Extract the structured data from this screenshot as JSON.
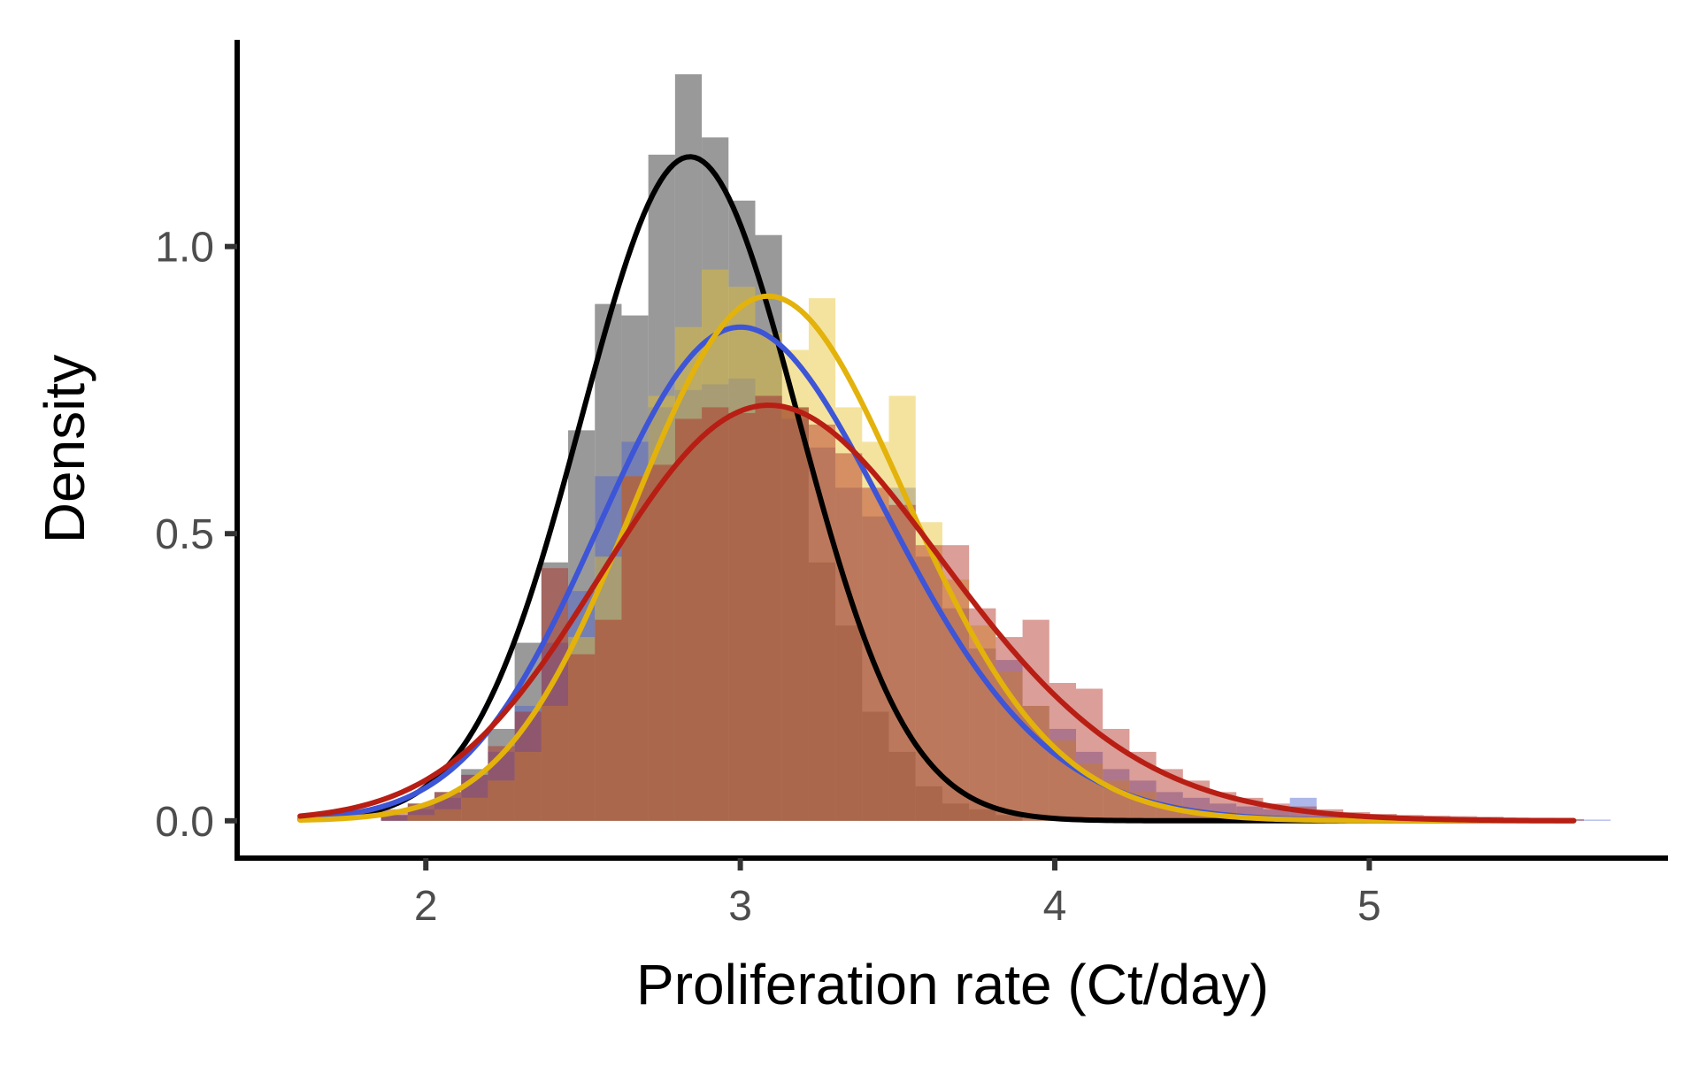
{
  "chart_data": {
    "type": "histogram",
    "title": "",
    "xlabel": "Proliferation rate (Ct/day)",
    "ylabel": "Density",
    "xlim": [
      1.4,
      5.95
    ],
    "ylim": [
      -0.065,
      1.36
    ],
    "x_ticks": [
      2,
      3,
      4,
      5
    ],
    "x_tick_labels": [
      "2",
      "3",
      "4",
      "5"
    ],
    "y_ticks": [
      0.0,
      0.5,
      1.0
    ],
    "y_tick_labels": [
      "0.0",
      "0.5",
      "1.0"
    ],
    "grid": false,
    "legend": "none",
    "bin_width": 0.085,
    "series": [
      {
        "color": "#7f7f7f",
        "fill_opacity": 0.8,
        "curve_color": "#000000",
        "bins": [
          {
            "x": 1.9,
            "y": 0.01
          },
          {
            "x": 1.985,
            "y": 0.03
          },
          {
            "x": 2.07,
            "y": 0.05
          },
          {
            "x": 2.155,
            "y": 0.09
          },
          {
            "x": 2.24,
            "y": 0.16
          },
          {
            "x": 2.325,
            "y": 0.31
          },
          {
            "x": 2.41,
            "y": 0.45
          },
          {
            "x": 2.495,
            "y": 0.68
          },
          {
            "x": 2.58,
            "y": 0.9
          },
          {
            "x": 2.665,
            "y": 0.88
          },
          {
            "x": 2.75,
            "y": 1.16
          },
          {
            "x": 2.835,
            "y": 1.3
          },
          {
            "x": 2.92,
            "y": 1.19
          },
          {
            "x": 3.005,
            "y": 1.08
          },
          {
            "x": 3.09,
            "y": 1.02
          },
          {
            "x": 3.175,
            "y": 0.72
          },
          {
            "x": 3.26,
            "y": 0.45
          },
          {
            "x": 3.345,
            "y": 0.34
          },
          {
            "x": 3.43,
            "y": 0.19
          },
          {
            "x": 3.515,
            "y": 0.12
          },
          {
            "x": 3.6,
            "y": 0.06
          },
          {
            "x": 3.685,
            "y": 0.03
          },
          {
            "x": 3.77,
            "y": 0.02
          },
          {
            "x": 3.855,
            "y": 0.01
          }
        ],
        "curve": {
          "mean": 2.84,
          "sd": 0.345
        }
      },
      {
        "color": "#4a5fd1",
        "fill_opacity": 0.45,
        "curve_color": "#3d55d6",
        "bins": [
          {
            "x": 1.9,
            "y": 0.01
          },
          {
            "x": 1.985,
            "y": 0.02
          },
          {
            "x": 2.07,
            "y": 0.04
          },
          {
            "x": 2.155,
            "y": 0.08
          },
          {
            "x": 2.24,
            "y": 0.12
          },
          {
            "x": 2.325,
            "y": 0.2
          },
          {
            "x": 2.41,
            "y": 0.31
          },
          {
            "x": 2.495,
            "y": 0.4
          },
          {
            "x": 2.58,
            "y": 0.6
          },
          {
            "x": 2.665,
            "y": 0.66
          },
          {
            "x": 2.75,
            "y": 0.72
          },
          {
            "x": 2.835,
            "y": 0.75
          },
          {
            "x": 2.92,
            "y": 0.76
          },
          {
            "x": 3.005,
            "y": 0.77
          },
          {
            "x": 3.09,
            "y": 0.74
          },
          {
            "x": 3.175,
            "y": 0.7
          },
          {
            "x": 3.26,
            "y": 0.65
          },
          {
            "x": 3.345,
            "y": 0.58
          },
          {
            "x": 3.43,
            "y": 0.53
          },
          {
            "x": 3.515,
            "y": 0.58
          },
          {
            "x": 3.6,
            "y": 0.46
          },
          {
            "x": 3.685,
            "y": 0.37
          },
          {
            "x": 3.77,
            "y": 0.3
          },
          {
            "x": 3.855,
            "y": 0.28
          },
          {
            "x": 3.94,
            "y": 0.2
          },
          {
            "x": 4.025,
            "y": 0.16
          },
          {
            "x": 4.11,
            "y": 0.12
          },
          {
            "x": 4.195,
            "y": 0.09
          },
          {
            "x": 4.28,
            "y": 0.07
          },
          {
            "x": 4.365,
            "y": 0.05
          },
          {
            "x": 4.45,
            "y": 0.04
          },
          {
            "x": 4.535,
            "y": 0.03
          },
          {
            "x": 4.62,
            "y": 0.025
          },
          {
            "x": 4.705,
            "y": 0.02
          },
          {
            "x": 4.79,
            "y": 0.04
          },
          {
            "x": 4.875,
            "y": 0.015
          },
          {
            "x": 4.96,
            "y": 0.01
          },
          {
            "x": 5.045,
            "y": 0.01
          },
          {
            "x": 5.13,
            "y": 0.008
          },
          {
            "x": 5.215,
            "y": 0.006
          },
          {
            "x": 5.3,
            "y": 0.005
          },
          {
            "x": 5.385,
            "y": 0.004
          },
          {
            "x": 5.47,
            "y": 0.003
          },
          {
            "x": 5.555,
            "y": 0.003
          },
          {
            "x": 5.64,
            "y": 0.002
          },
          {
            "x": 5.725,
            "y": 0.002
          }
        ],
        "curve": {
          "mean": 3.05,
          "sd": 0.47,
          "skew": 1.2
        }
      },
      {
        "color": "#e6c229",
        "fill_opacity": 0.45,
        "curve_color": "#e3b20b",
        "bins": [
          {
            "x": 1.985,
            "y": 0.01
          },
          {
            "x": 2.07,
            "y": 0.02
          },
          {
            "x": 2.155,
            "y": 0.04
          },
          {
            "x": 2.24,
            "y": 0.07
          },
          {
            "x": 2.325,
            "y": 0.12
          },
          {
            "x": 2.41,
            "y": 0.2
          },
          {
            "x": 2.495,
            "y": 0.32
          },
          {
            "x": 2.58,
            "y": 0.46
          },
          {
            "x": 2.665,
            "y": 0.6
          },
          {
            "x": 2.75,
            "y": 0.74
          },
          {
            "x": 2.835,
            "y": 0.86
          },
          {
            "x": 2.92,
            "y": 0.96
          },
          {
            "x": 3.005,
            "y": 0.93
          },
          {
            "x": 3.09,
            "y": 0.85
          },
          {
            "x": 3.175,
            "y": 0.82
          },
          {
            "x": 3.26,
            "y": 0.91
          },
          {
            "x": 3.345,
            "y": 0.72
          },
          {
            "x": 3.43,
            "y": 0.66
          },
          {
            "x": 3.515,
            "y": 0.74
          },
          {
            "x": 3.6,
            "y": 0.52
          },
          {
            "x": 3.685,
            "y": 0.42
          },
          {
            "x": 3.77,
            "y": 0.34
          },
          {
            "x": 3.855,
            "y": 0.26
          },
          {
            "x": 3.94,
            "y": 0.2
          },
          {
            "x": 4.025,
            "y": 0.14
          },
          {
            "x": 4.11,
            "y": 0.1
          },
          {
            "x": 4.195,
            "y": 0.07
          },
          {
            "x": 4.28,
            "y": 0.05
          },
          {
            "x": 4.365,
            "y": 0.03
          },
          {
            "x": 4.45,
            "y": 0.02
          },
          {
            "x": 4.535,
            "y": 0.015
          },
          {
            "x": 4.62,
            "y": 0.01
          }
        ],
        "curve": {
          "mean": 3.12,
          "sd": 0.44,
          "skew": 1.0
        }
      },
      {
        "color": "#b0281a",
        "fill_opacity": 0.45,
        "curve_color": "#b81e14",
        "bins": [
          {
            "x": 1.9,
            "y": 0.02
          },
          {
            "x": 1.985,
            "y": 0.03
          },
          {
            "x": 2.07,
            "y": 0.05
          },
          {
            "x": 2.155,
            "y": 0.08
          },
          {
            "x": 2.24,
            "y": 0.13
          },
          {
            "x": 2.325,
            "y": 0.19
          },
          {
            "x": 2.41,
            "y": 0.44
          },
          {
            "x": 2.495,
            "y": 0.29
          },
          {
            "x": 2.58,
            "y": 0.35
          },
          {
            "x": 2.665,
            "y": 0.6
          },
          {
            "x": 2.75,
            "y": 0.62
          },
          {
            "x": 2.835,
            "y": 0.7
          },
          {
            "x": 2.92,
            "y": 0.72
          },
          {
            "x": 3.005,
            "y": 0.71
          },
          {
            "x": 3.09,
            "y": 0.74
          },
          {
            "x": 3.175,
            "y": 0.72
          },
          {
            "x": 3.26,
            "y": 0.69
          },
          {
            "x": 3.345,
            "y": 0.64
          },
          {
            "x": 3.43,
            "y": 0.58
          },
          {
            "x": 3.515,
            "y": 0.55
          },
          {
            "x": 3.6,
            "y": 0.48
          },
          {
            "x": 3.685,
            "y": 0.48
          },
          {
            "x": 3.77,
            "y": 0.37
          },
          {
            "x": 3.855,
            "y": 0.32
          },
          {
            "x": 3.94,
            "y": 0.35
          },
          {
            "x": 4.025,
            "y": 0.24
          },
          {
            "x": 4.11,
            "y": 0.23
          },
          {
            "x": 4.195,
            "y": 0.16
          },
          {
            "x": 4.28,
            "y": 0.12
          },
          {
            "x": 4.365,
            "y": 0.09
          },
          {
            "x": 4.45,
            "y": 0.07
          },
          {
            "x": 4.535,
            "y": 0.05
          },
          {
            "x": 4.62,
            "y": 0.04
          },
          {
            "x": 4.705,
            "y": 0.03
          },
          {
            "x": 4.79,
            "y": 0.025
          },
          {
            "x": 4.875,
            "y": 0.02
          },
          {
            "x": 4.96,
            "y": 0.015
          },
          {
            "x": 5.045,
            "y": 0.012
          },
          {
            "x": 5.13,
            "y": 0.01
          },
          {
            "x": 5.215,
            "y": 0.009
          },
          {
            "x": 5.3,
            "y": 0.008
          },
          {
            "x": 5.385,
            "y": 0.007
          },
          {
            "x": 5.47,
            "y": 0.005
          },
          {
            "x": 5.555,
            "y": 0.004
          },
          {
            "x": 5.64,
            "y": 0.003
          }
        ],
        "curve": {
          "mean": 3.16,
          "sd": 0.56,
          "skew": 1.3
        }
      }
    ],
    "curve_range": [
      1.6,
      5.65
    ]
  }
}
